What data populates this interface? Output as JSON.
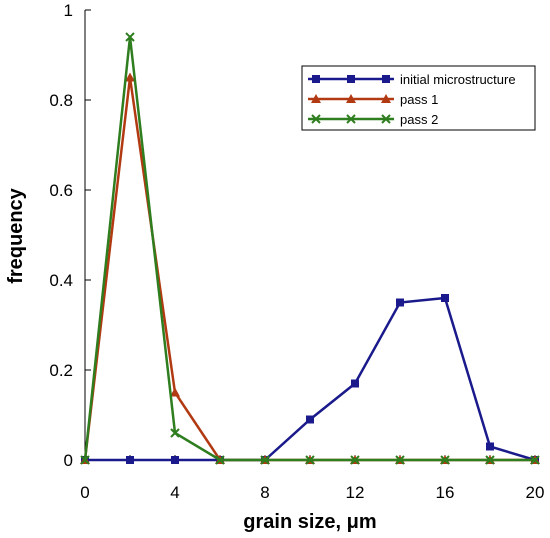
{
  "chart_data": {
    "type": "line",
    "xlabel": "grain size, μm",
    "ylabel": "frequency",
    "xlim": [
      0,
      20
    ],
    "ylim": [
      0,
      1
    ],
    "xticks": [
      0,
      4,
      8,
      12,
      16,
      20
    ],
    "yticks": [
      0,
      0.2,
      0.4,
      0.6,
      0.8,
      1
    ],
    "grid": false,
    "legend_position": "top-right",
    "series": [
      {
        "name": "initial microstructure",
        "color": "#1a1a8c",
        "marker": "square",
        "x": [
          0,
          2,
          4,
          6,
          8,
          10,
          12,
          14,
          16,
          18,
          20
        ],
        "y": [
          0,
          0,
          0,
          0,
          0,
          0.09,
          0.17,
          0.35,
          0.36,
          0.03,
          0
        ]
      },
      {
        "name": "pass 1",
        "color": "#b23a12",
        "marker": "triangle",
        "x": [
          0,
          2,
          4,
          6,
          8,
          10,
          12,
          14,
          16,
          18,
          20
        ],
        "y": [
          0,
          0.85,
          0.15,
          0,
          0,
          0,
          0,
          0,
          0,
          0,
          0
        ]
      },
      {
        "name": "pass 2",
        "color": "#2e7d1e",
        "marker": "x",
        "x": [
          0,
          2,
          4,
          6,
          8,
          10,
          12,
          14,
          16,
          18,
          20
        ],
        "y": [
          0,
          0.94,
          0.06,
          0,
          0,
          0,
          0,
          0,
          0,
          0,
          0
        ]
      }
    ]
  }
}
